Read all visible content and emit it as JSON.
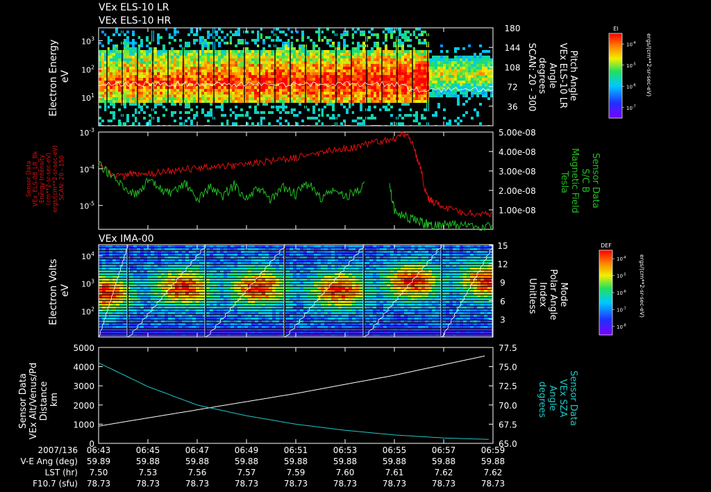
{
  "colors": {
    "background": "#000000",
    "foreground": "#ffffff",
    "red_trace": "#e01010",
    "green_trace": "#20c020",
    "cyan_trace": "#20c8c8",
    "white_trace": "#ffffff"
  },
  "header": {
    "line1": "VEx ELS-10 LR",
    "line2": "VEx ELS-10 HR"
  },
  "chart_data": [
    {
      "id": "panel1",
      "type": "heatmap",
      "title": "",
      "ylabel_lines": [
        "Electron Energy",
        "eV"
      ],
      "y_scale": "log",
      "y_ticks": [
        {
          "base": "10",
          "exp": "3",
          "value": 1000
        },
        {
          "base": "10",
          "exp": "2",
          "value": 100
        },
        {
          "base": "10",
          "exp": "1",
          "value": 10
        }
      ],
      "y2label_lines": [
        "Pitch Angle",
        "VEx ELS-10 LR",
        "Angle",
        "degrees",
        "SCAN: 20 - 300"
      ],
      "y2_ticks": [
        "180",
        "144",
        "108",
        "72",
        "36"
      ],
      "y2_range": [
        0,
        180
      ],
      "overlay_series": {
        "name": "Pitch Angle",
        "color": "#ffffff"
      },
      "colorbar": {
        "label": "El",
        "ticks": [
          {
            "base": "10",
            "exp": "-4"
          },
          {
            "base": "10",
            "exp": "-5"
          },
          {
            "base": "10",
            "exp": "-6"
          },
          {
            "base": "10",
            "exp": "-7"
          }
        ],
        "unit": "ergs/(cm**2-sr-sec-eV)"
      }
    },
    {
      "id": "panel2",
      "type": "line",
      "title": "",
      "ylabel_lines": [
        "Sensor Data",
        "VEx_ELS-08_LR_Bk",
        "Energy Intensity",
        "(cm**2-sr-sec-eV)",
        "ergs/(cm**2-sr-sec-eV)",
        "SCAN: 20 - 150"
      ],
      "y_scale": "log",
      "y_ticks": [
        {
          "base": "10",
          "exp": "-3",
          "value": 0.001
        },
        {
          "base": "10",
          "exp": "-4",
          "value": 0.0001
        },
        {
          "base": "10",
          "exp": "-5",
          "value": 1e-05
        }
      ],
      "y2label_lines": [
        "Sensor Data",
        "S/C B",
        "Magnetic Field",
        "Tesla"
      ],
      "y2_ticks": [
        "5.00e-08",
        "4.00e-08",
        "3.00e-08",
        "2.00e-08",
        "1.00e-08"
      ],
      "y2_range": [
        0,
        5e-08
      ],
      "series": [
        {
          "name": "Energy Intensity",
          "axis": "left",
          "x_minutes": [
            0,
            0.5,
            1,
            1.3,
            1.6,
            2,
            2.5,
            3,
            3.5,
            4,
            4.5,
            5,
            5.5,
            6,
            6.5,
            7,
            7.5,
            8,
            8.5,
            9,
            9.5,
            10,
            10.5,
            11,
            11.5,
            12,
            12.3,
            12.6,
            12.9,
            13.2,
            13.4,
            13.6,
            14,
            14.5,
            15,
            15.5,
            16
          ],
          "values": [
            0.00015,
            7e-05,
            6e-05,
            8e-05,
            7e-05,
            7e-05,
            8e-05,
            9e-05,
            0.0001,
            0.0001,
            0.00011,
            0.00012,
            0.00012,
            0.00014,
            0.00015,
            0.00016,
            0.00018,
            0.0002,
            0.00024,
            0.00028,
            0.00032,
            0.00035,
            0.0004,
            0.00048,
            0.00056,
            0.00065,
            0.0009,
            0.0007,
            0.0002,
            3e-05,
            1.5e-05,
            1.2e-05,
            9e-06,
            7e-06,
            6e-06,
            6e-06,
            6e-06
          ]
        }
      ],
      "series2": [
        {
          "name": "S/C B",
          "axis": "right",
          "x_minutes": [
            0,
            0.5,
            1,
            1.5,
            2,
            2.5,
            3,
            3.5,
            4,
            4.5,
            5,
            5.5,
            6,
            6.5,
            7,
            7.5,
            8,
            8.5,
            9,
            9.5,
            10,
            10.5,
            10.8,
            11.5,
            11.8,
            12,
            12.5,
            13,
            13.3,
            13.6,
            14,
            14.5,
            15,
            15.5,
            16
          ],
          "values": [
            3.6e-08,
            3e-08,
            2.4e-08,
            2e-08,
            2.7e-08,
            2.3e-08,
            2e-08,
            2.6e-08,
            1.7e-08,
            2.4e-08,
            1.9e-08,
            2.5e-08,
            1.8e-08,
            2.3e-08,
            1.7e-08,
            2.4e-08,
            2e-08,
            2.6e-08,
            1.8e-08,
            2.2e-08,
            1.9e-08,
            2.2e-08,
            2.6e-08,
            null,
            2.4e-08,
            1.2e-08,
            8e-09,
            6e-09,
            5e-09,
            4.5e-09,
            4.5e-09,
            4.2e-09,
            4e-09,
            3.5e-09,
            4e-09
          ]
        }
      ]
    },
    {
      "id": "panel3",
      "type": "heatmap",
      "title": "VEx IMA-00",
      "ylabel_lines": [
        "Electron Volts",
        "eV"
      ],
      "y_scale": "log",
      "y_ticks": [
        {
          "base": "10",
          "exp": "4",
          "value": 10000
        },
        {
          "base": "10",
          "exp": "3",
          "value": 1000
        },
        {
          "base": "10",
          "exp": "2",
          "value": 100
        }
      ],
      "y2label_lines": [
        "Mode",
        "Polar Angle",
        "Index",
        "Unitless"
      ],
      "y2_ticks": [
        "15",
        "12",
        "9",
        "6",
        "3"
      ],
      "y2_range": [
        0,
        15
      ],
      "overlay_series": {
        "name": "Polar Angle Index",
        "color": "#ffffff"
      },
      "colorbar": {
        "label": "DEF",
        "ticks": [
          {
            "base": "10",
            "exp": "-4"
          },
          {
            "base": "10",
            "exp": "-5"
          },
          {
            "base": "10",
            "exp": "-6"
          },
          {
            "base": "10",
            "exp": "-7"
          },
          {
            "base": "10",
            "exp": "-8"
          }
        ],
        "unit": "ergs/(cm**2-sr-sec-eV)"
      }
    },
    {
      "id": "panel4",
      "type": "line",
      "title": "",
      "ylabel_lines": [
        "Sensor Data",
        "VEx Alt/Venus/Pd",
        "Distance",
        "km"
      ],
      "y_range": [
        0,
        5000
      ],
      "y_ticks": [
        "5000",
        "4000",
        "3000",
        "2000",
        "1000",
        "0"
      ],
      "y2label_lines": [
        "Sensor Data",
        "VEx SZA",
        "Angle",
        "degrees"
      ],
      "y2_range": [
        65.0,
        77.5
      ],
      "y2_ticks": [
        "77.5",
        "75.0",
        "72.5",
        "70.0",
        "67.5",
        "65.0"
      ],
      "series": [
        {
          "name": "VEx Alt/Venus/Pd",
          "axis": "left",
          "x_minutes": [
            0,
            4,
            8,
            12,
            16
          ],
          "values": [
            900,
            1750,
            2600,
            3550,
            4650
          ]
        }
      ],
      "series2": [
        {
          "name": "VEx SZA",
          "axis": "right",
          "x_minutes": [
            0,
            2,
            4,
            6,
            8,
            10,
            12,
            14,
            16
          ],
          "values": [
            75.5,
            72.4,
            70.0,
            68.6,
            67.5,
            66.7,
            66.1,
            65.7,
            65.5
          ]
        }
      ]
    }
  ],
  "x_axis": {
    "row_labels": [
      "2007/136",
      "V-E Ang (deg)",
      "LST (hr)",
      "F10.7 (sfu)"
    ],
    "ticks": [
      "06:43",
      "06:45",
      "06:47",
      "06:49",
      "06:51",
      "06:53",
      "06:55",
      "06:57",
      "06:59"
    ],
    "tick_minutes": [
      0,
      2,
      4,
      6,
      8,
      10,
      12,
      14,
      16
    ],
    "rows": [
      [
        "59.89",
        "59.88",
        "59.88",
        "59.88",
        "59.88",
        "59.88",
        "59.88",
        "59.88",
        "59.88"
      ],
      [
        "7.50",
        "7.53",
        "7.56",
        "7.57",
        "7.59",
        "7.60",
        "7.61",
        "7.62",
        "7.62"
      ],
      [
        "78.73",
        "78.73",
        "78.73",
        "78.73",
        "78.73",
        "78.73",
        "78.73",
        "78.73",
        "78.73"
      ]
    ]
  }
}
